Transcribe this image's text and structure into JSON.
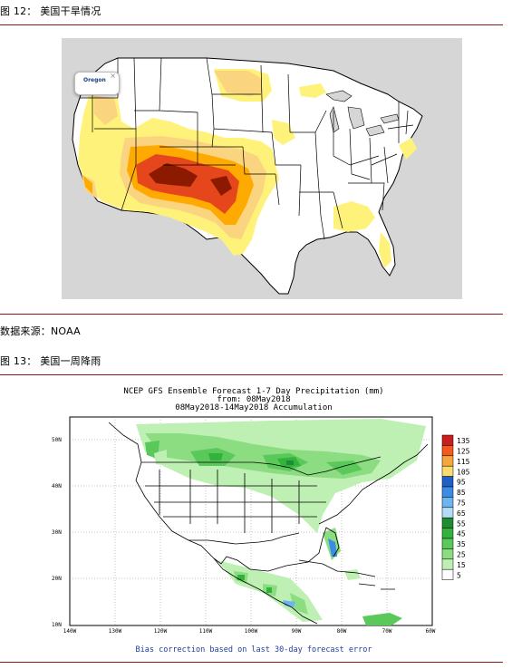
{
  "figure12": {
    "caption": "图 12：  美国干旱情况",
    "popup_label": "Oregon",
    "popup_close": "×",
    "colors": {
      "background": "#d6d6d6",
      "land": "#ffffff",
      "d0": "#fff27a",
      "d1": "#fbd47f",
      "d2": "#ffaa00",
      "d3": "#e6461c",
      "d4": "#8b1a00"
    }
  },
  "source": {
    "text": "数据来源：NOAA"
  },
  "figure13": {
    "caption": "图 13：  美国一周降雨",
    "title_line1": "NCEP GFS Ensemble Forecast 1-7 Day Precipitation (mm)",
    "title_line2": "from: 08May2018",
    "title_line3": "08May2018-14May2018 Accumulation",
    "footer": "Bias correction based on last 30-day forecast error",
    "lat_labels": [
      "50N",
      "40N",
      "30N",
      "20N",
      "10N"
    ],
    "lon_labels": [
      "140W",
      "130W",
      "120W",
      "110W",
      "100W",
      "90W",
      "80W",
      "70W",
      "60W"
    ],
    "legend": [
      {
        "label": "135",
        "color": "#c81e1e"
      },
      {
        "label": "125",
        "color": "#f25a1e"
      },
      {
        "label": "115",
        "color": "#f5a63c"
      },
      {
        "label": "105",
        "color": "#fadc6e"
      },
      {
        "label": "95",
        "color": "#1e5fc8"
      },
      {
        "label": "85",
        "color": "#3c8ce6"
      },
      {
        "label": "75",
        "color": "#6eb4f0"
      },
      {
        "label": "65",
        "color": "#b4dcf5"
      },
      {
        "label": "55",
        "color": "#1e8c32"
      },
      {
        "label": "45",
        "color": "#32b43c"
      },
      {
        "label": "35",
        "color": "#5ac85a"
      },
      {
        "label": "25",
        "color": "#8cdc82"
      },
      {
        "label": "15",
        "color": "#bef0b4"
      },
      {
        "label": "5",
        "color": "#ffffff"
      }
    ]
  }
}
